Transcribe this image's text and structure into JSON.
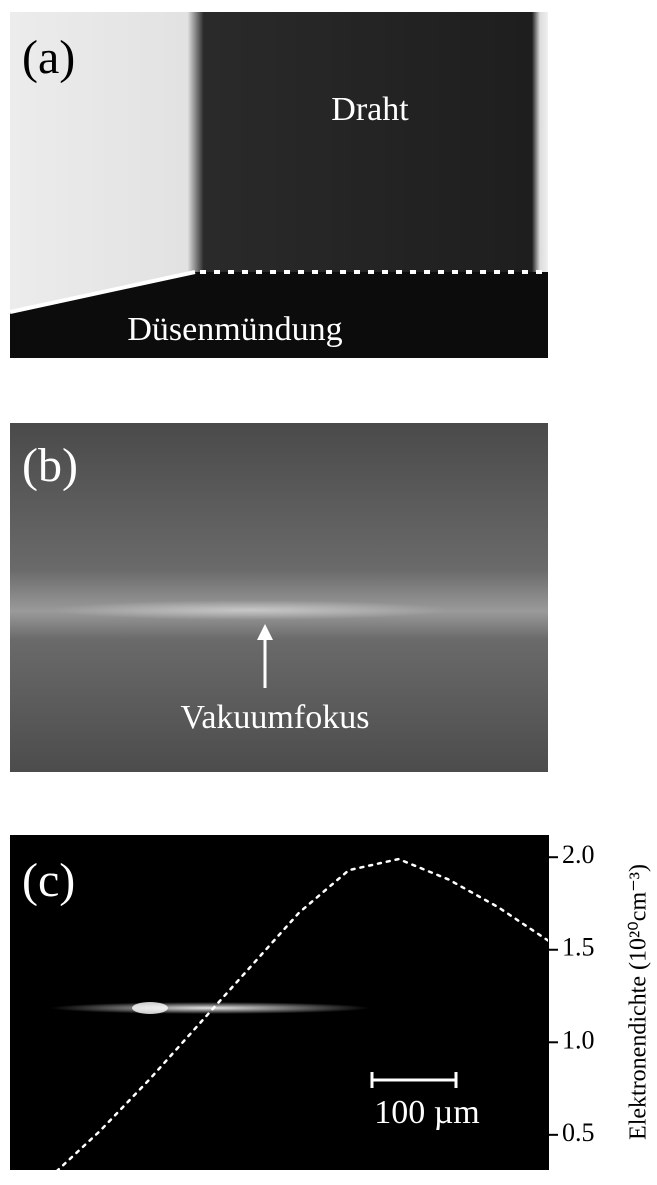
{
  "panels": {
    "a": {
      "label": "(a)",
      "wire": "Draht",
      "nozzle": "Düsenmündung"
    },
    "b": {
      "label": "(b)",
      "focus": "Vakuumfokus"
    },
    "c": {
      "label": "(c)",
      "scale_bar": "100 µm"
    }
  },
  "chart_data": {
    "type": "line",
    "ylabel": "Elektronendichte (10²⁰cm⁻³)",
    "categories": [
      null,
      null,
      null,
      null,
      null,
      null,
      null,
      null,
      null,
      null,
      null
    ],
    "series": [
      {
        "name": null,
        "color": "#ffffff",
        "values": [
          0.27,
          0.52,
          0.8,
          1.1,
          1.4,
          1.7,
          1.93,
          1.99,
          1.88,
          1.73,
          1.55
        ]
      }
    ],
    "ylim": [
      0.31,
      2.12
    ],
    "yticks": [
      0.5,
      {
        "value": 1,
        "label": "1.0"
      },
      1.5,
      {
        "value": 2,
        "label": "2.0"
      }
    ]
  }
}
